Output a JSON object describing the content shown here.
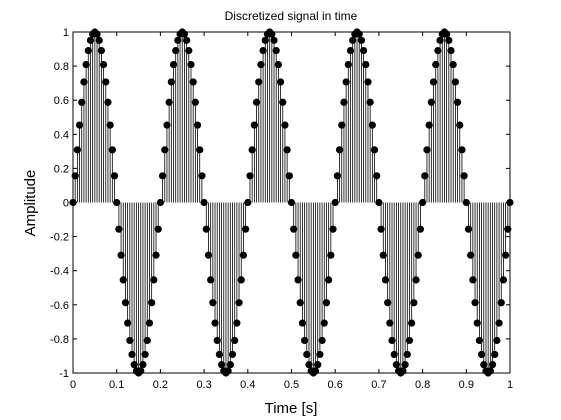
{
  "chart_data": {
    "type": "stem",
    "title": "Discretized signal in time",
    "xlabel": "Time [s]",
    "ylabel": "Amplitude",
    "xlim": [
      0,
      1
    ],
    "ylim": [
      -1,
      1
    ],
    "grid": false,
    "signal": {
      "function": "sine",
      "frequency_hz": 5,
      "amplitude": 1
    },
    "sample_step_s": 0.005,
    "xticks": [
      "0",
      "0.1",
      "0.2",
      "0.3",
      "0.4",
      "0.5",
      "0.6",
      "0.7",
      "0.8",
      "0.9",
      "1"
    ],
    "yticks": [
      "1",
      "0.8",
      "0.6",
      "0.4",
      "0.2",
      "0",
      "-0.2",
      "-0.4",
      "-0.6",
      "-0.8",
      "-1"
    ],
    "marker_color": "#000000",
    "stem_color": "#000000"
  }
}
